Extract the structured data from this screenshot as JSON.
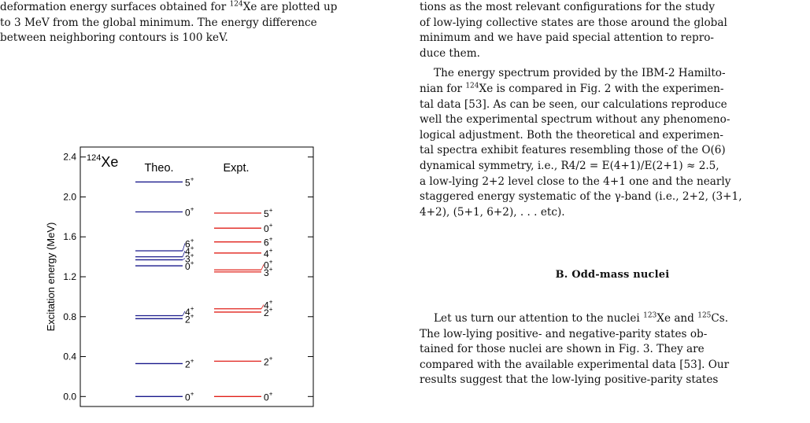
{
  "left_column": {
    "caption_tail_line1_pre": "deformation energy surfaces obtained for ",
    "caption_tail_line1_mass": "124",
    "caption_tail_line1_post": "Xe are plotted up",
    "caption_tail_line2": "to 3 MeV from the global minimum. The energy difference",
    "caption_tail_line3": "between neighboring contours is 100 keV."
  },
  "right_column": {
    "para1_line1": "tions as the most relevant configurations for the study",
    "para1_line2": "of low-lying collective states are those around the global",
    "para1_line3": "minimum and we have paid special attention to repro-",
    "para1_line4": "duce them.",
    "para2_line1": "The energy spectrum provided by the IBM-2 Hamilto-",
    "para2_line2_pre": "nian for ",
    "para2_line2_mass": "124",
    "para2_line2_post": "Xe is compared in Fig. 2 with the experimen-",
    "para2_line3": "tal data [53]. As can be seen, our calculations reproduce",
    "para2_line4": "well the experimental spectrum without any phenomeno-",
    "para2_line5": "logical adjustment. Both the theoretical and experimen-",
    "para2_line6": "tal spectra exhibit features resembling those of the O(6)",
    "para2_line7": "dynamical symmetry, i.e., R4/2 = E(4+1)/E(2+1) ≈ 2.5,",
    "para2_line8": "a low-lying 2+2 level close to the 4+1 one and the nearly",
    "para2_line9": "staggered energy systematic of the γ-band (i.e., 2+2, (3+1,",
    "para2_line10": "4+2), (5+1, 6+2), . . . etc).",
    "section_title": "B.    Odd-mass nuclei",
    "para3_line1_pre": "Let us turn our attention to the nuclei ",
    "para3_line1_mass_a": "123",
    "para3_line1_mid": "Xe and ",
    "para3_line1_mass_b": "125",
    "para3_line1_post": "Cs.",
    "para3_line2": "The low-lying positive- and negative-parity states ob-",
    "para3_line3": "tained for those nuclei are shown in Fig. 3. They are",
    "para3_line4": "compared with the available experimental data [53]. Our",
    "para3_line5": "results suggest that the low-lying positive-parity states"
  },
  "chart_data": {
    "type": "level-scheme",
    "nucleus_mass": "124",
    "nucleus_symbol": "Xe",
    "ylabel": "Excitation energy (MeV)",
    "ylim": [
      -0.1,
      2.5
    ],
    "yticks": [
      "0.0",
      "0.4",
      "0.8",
      "1.2",
      "1.6",
      "2.0",
      "2.4"
    ],
    "columns": [
      {
        "name": "Theo.",
        "color": "#1a1a8c",
        "levels": [
          {
            "e": 0.0,
            "label": "0"
          },
          {
            "e": 0.33,
            "label": "2"
          },
          {
            "e": 0.78,
            "label": "2"
          },
          {
            "e": 0.81,
            "label": "4"
          },
          {
            "e": 1.31,
            "label": "0"
          },
          {
            "e": 1.37,
            "label": "3"
          },
          {
            "e": 1.4,
            "label": "4"
          },
          {
            "e": 1.46,
            "label": "6"
          },
          {
            "e": 1.85,
            "label": "0"
          },
          {
            "e": 2.15,
            "label": "5"
          }
        ]
      },
      {
        "name": "Expt.",
        "color": "#e0201a",
        "levels": [
          {
            "e": 0.0,
            "label": "0"
          },
          {
            "e": 0.354,
            "label": "2"
          },
          {
            "e": 0.846,
            "label": "2"
          },
          {
            "e": 0.879,
            "label": "4"
          },
          {
            "e": 1.248,
            "label": "3"
          },
          {
            "e": 1.269,
            "label": "0"
          },
          {
            "e": 1.438,
            "label": "4"
          },
          {
            "e": 1.549,
            "label": "6"
          },
          {
            "e": 1.687,
            "label": "0"
          },
          {
            "e": 1.838,
            "label": "5"
          }
        ]
      }
    ]
  }
}
